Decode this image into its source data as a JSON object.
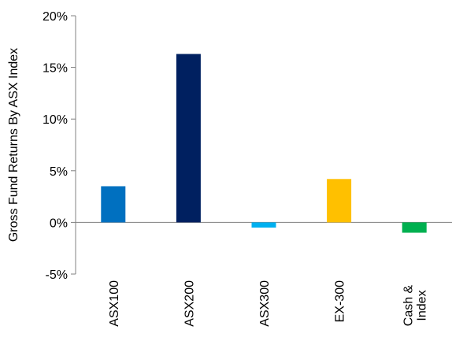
{
  "chart_data": {
    "type": "bar",
    "ylabel": "Gross Fund Returns By ASX Index",
    "xlabel": "",
    "ylim": [
      -5,
      20
    ],
    "yticks": [
      -5,
      0,
      5,
      10,
      15,
      20
    ],
    "ytick_labels": [
      "-5%",
      "0%",
      "5%",
      "10%",
      "15%",
      "20%"
    ],
    "categories": [
      "ASX100",
      "ASX200",
      "ASX300",
      "EX-300",
      "Cash & Index"
    ],
    "category_label_lines": [
      [
        "ASX100"
      ],
      [
        "ASX200"
      ],
      [
        "ASX300"
      ],
      [
        "EX-300"
      ],
      [
        "Cash &",
        "Index"
      ]
    ],
    "values": [
      3.5,
      16.3,
      -0.5,
      4.2,
      -1.0
    ],
    "colors": [
      "#0070C0",
      "#002060",
      "#00B0F0",
      "#FFC000",
      "#00B050"
    ],
    "grid": false,
    "legend": "none"
  }
}
